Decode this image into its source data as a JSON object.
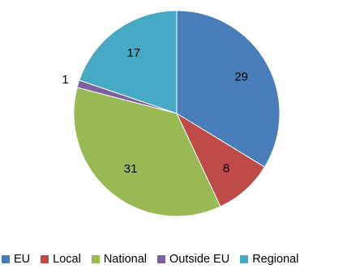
{
  "chart_data": {
    "type": "pie",
    "categories": [
      "EU",
      "Local",
      "National",
      "Outside EU",
      "Regional"
    ],
    "values": [
      29,
      8,
      31,
      1,
      17
    ],
    "colors": [
      "#4a7ebb",
      "#be4b48",
      "#98b954",
      "#7d60a0",
      "#46aac5"
    ],
    "start_angle_deg": 0,
    "direction": "clockwise",
    "data_labels": [
      "29",
      "8",
      "31",
      "1",
      "17"
    ],
    "legend_position": "bottom"
  }
}
